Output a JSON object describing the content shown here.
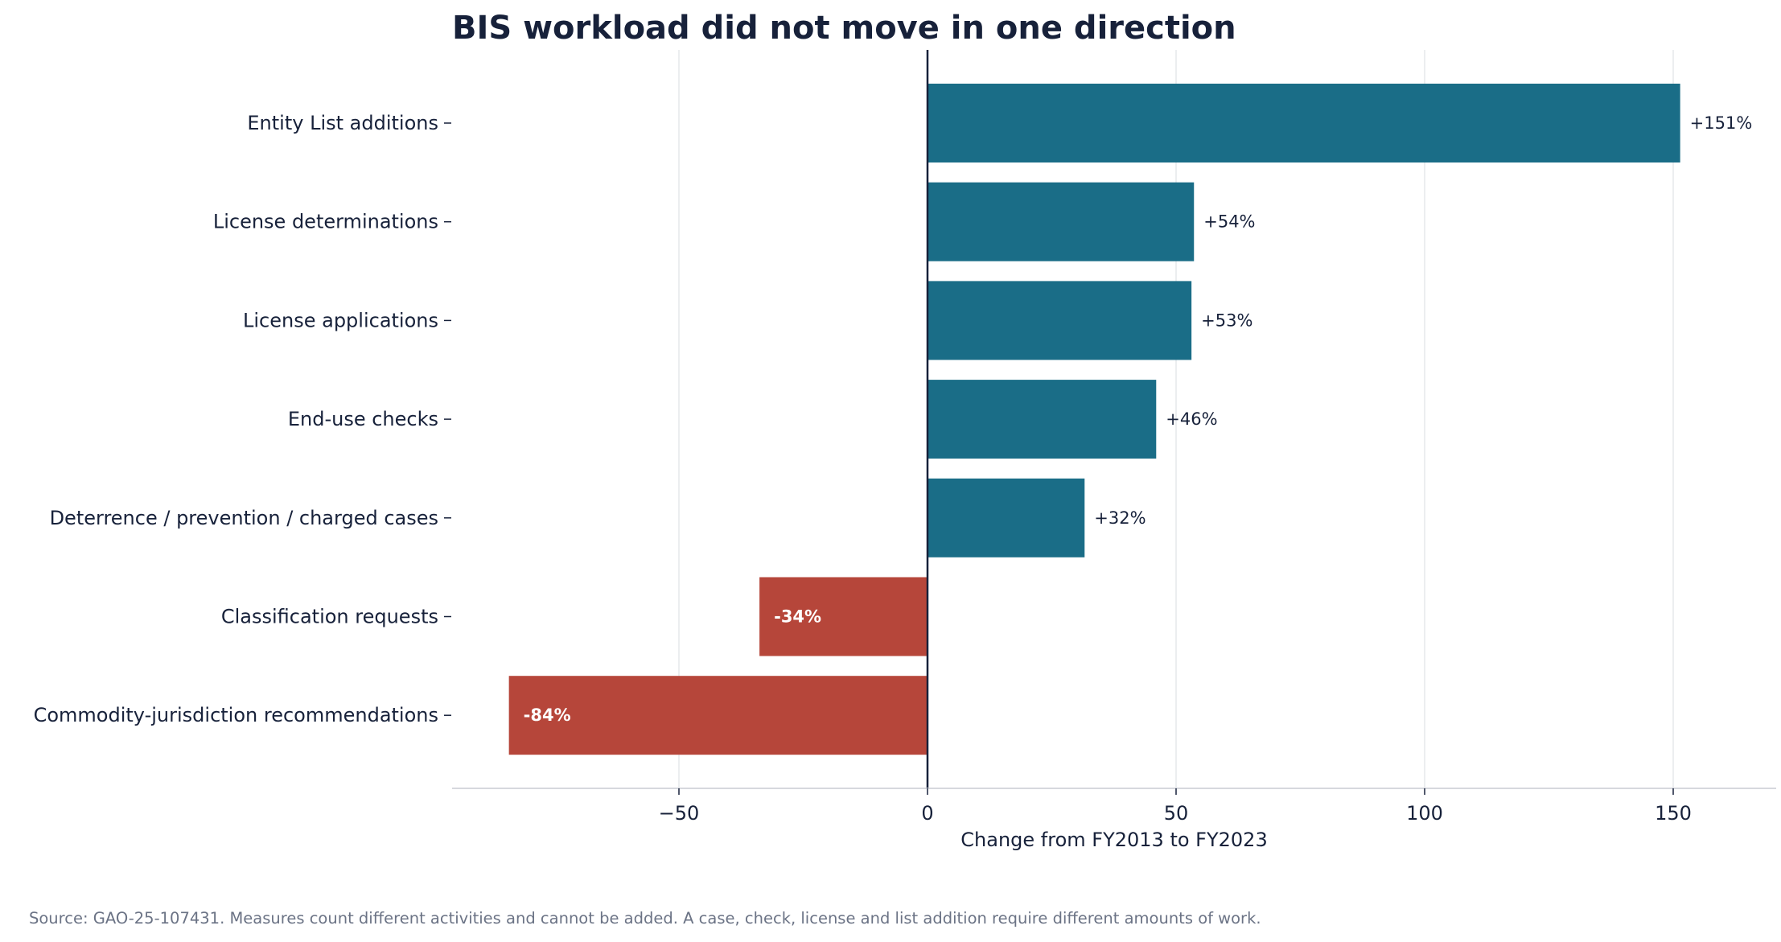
{
  "chart_data": {
    "type": "bar",
    "orientation": "horizontal",
    "title": "BIS workload did not move in one direction",
    "xlabel": "Change from FY2013 to FY2023",
    "ylabel": "",
    "xlim": [
      -90,
      170
    ],
    "xticks": [
      -50,
      0,
      50,
      100,
      150
    ],
    "xtick_labels": [
      "−50",
      "0",
      "50",
      "100",
      "150"
    ],
    "grid": "vertical, light",
    "categories": [
      "Entity List additions",
      "License determinations",
      "License applications",
      "End-use checks",
      "Deterrence / prevention / charged cases",
      "Classification requests",
      "Commodity-jurisdiction recommendations"
    ],
    "values": [
      151.4,
      53.6,
      53.1,
      46,
      31.6,
      -33.8,
      -84.2
    ],
    "data_labels": [
      "+151%",
      "+54%",
      "+53%",
      "+46%",
      "+32%",
      "-34%",
      "-84%"
    ],
    "colors": {
      "positive": "#1a6d87",
      "negative": "#b6463a"
    }
  },
  "source_note": "Source: GAO-25-107431. Measures count different activities and cannot be added. A case, check, license and list addition require different amounts of work."
}
